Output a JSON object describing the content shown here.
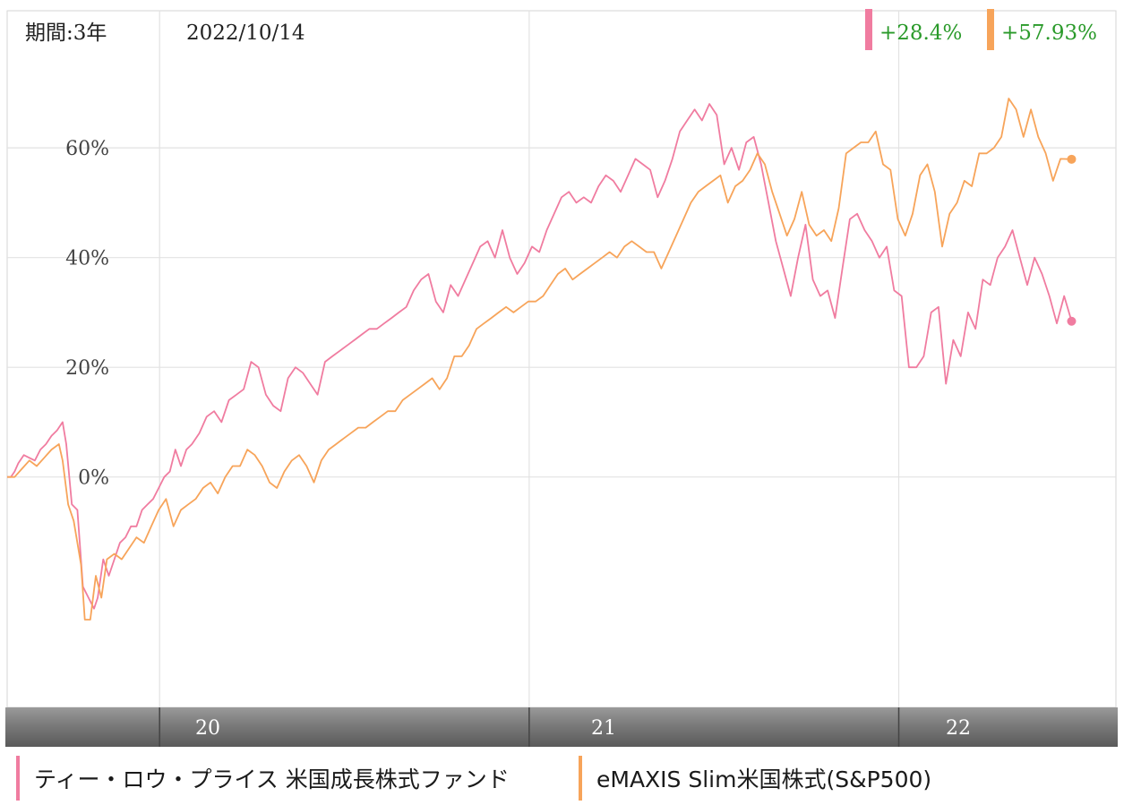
{
  "header": {
    "period_label": "期間:3年",
    "date_label": "2022/10/14"
  },
  "badges": [
    {
      "text": "+28.4%",
      "color": "#f07ca0",
      "text_color": "#2a9a2a"
    },
    {
      "text": "+57.93%",
      "color": "#f7a45a",
      "text_color": "#2a9a2a"
    }
  ],
  "legend": [
    {
      "label": "ティー・ロウ・プライス 米国成長株式ファンド",
      "color": "#f07ca0"
    },
    {
      "label": "eMAXIS Slim米国株式(S&P500)",
      "color": "#f7a45a"
    }
  ],
  "chart_data": {
    "type": "line",
    "x_unit": "years since 2019-10-14",
    "x_range": [
      0,
      3
    ],
    "ylim": [
      -42,
      85
    ],
    "y_ticks": [
      {
        "value": 60,
        "label": "60%"
      },
      {
        "value": 40,
        "label": "40%"
      },
      {
        "value": 20,
        "label": "20%"
      },
      {
        "value": 0,
        "label": "0%"
      }
    ],
    "x_ticks": [
      {
        "value": 0.41,
        "label": "20"
      },
      {
        "value": 1.41,
        "label": "21"
      },
      {
        "value": 2.41,
        "label": "22"
      }
    ],
    "grid": true,
    "series": [
      {
        "name": "ティー・ロウ・プライス 米国成長株式ファンド",
        "color": "#f07ca0",
        "end_value": 28.4,
        "points": [
          [
            0,
            0
          ],
          [
            0.01,
            0
          ],
          [
            0.02,
            1
          ],
          [
            0.03,
            2.5
          ],
          [
            0.045,
            4
          ],
          [
            0.06,
            3.5
          ],
          [
            0.075,
            3
          ],
          [
            0.09,
            5
          ],
          [
            0.105,
            6
          ],
          [
            0.12,
            7.5
          ],
          [
            0.135,
            8.5
          ],
          [
            0.15,
            10
          ],
          [
            0.16,
            6
          ],
          [
            0.175,
            -5
          ],
          [
            0.19,
            -6
          ],
          [
            0.205,
            -20
          ],
          [
            0.22,
            -22
          ],
          [
            0.235,
            -24
          ],
          [
            0.245,
            -22
          ],
          [
            0.26,
            -15
          ],
          [
            0.275,
            -18
          ],
          [
            0.29,
            -15
          ],
          [
            0.305,
            -12
          ],
          [
            0.32,
            -11
          ],
          [
            0.335,
            -9
          ],
          [
            0.35,
            -9
          ],
          [
            0.365,
            -6
          ],
          [
            0.38,
            -5
          ],
          [
            0.395,
            -4
          ],
          [
            0.41,
            -2
          ],
          [
            0.425,
            0
          ],
          [
            0.44,
            1
          ],
          [
            0.455,
            5
          ],
          [
            0.47,
            2
          ],
          [
            0.485,
            5
          ],
          [
            0.5,
            6
          ],
          [
            0.52,
            8
          ],
          [
            0.54,
            11
          ],
          [
            0.56,
            12
          ],
          [
            0.58,
            10
          ],
          [
            0.6,
            14
          ],
          [
            0.62,
            15
          ],
          [
            0.64,
            16
          ],
          [
            0.66,
            21
          ],
          [
            0.68,
            20
          ],
          [
            0.7,
            15
          ],
          [
            0.72,
            13
          ],
          [
            0.74,
            12
          ],
          [
            0.76,
            18
          ],
          [
            0.78,
            20
          ],
          [
            0.8,
            19
          ],
          [
            0.82,
            17
          ],
          [
            0.84,
            15
          ],
          [
            0.86,
            21
          ],
          [
            0.88,
            22
          ],
          [
            0.9,
            23
          ],
          [
            0.92,
            24
          ],
          [
            0.94,
            25
          ],
          [
            0.96,
            26
          ],
          [
            0.98,
            27
          ],
          [
            1.0,
            27
          ],
          [
            1.02,
            28
          ],
          [
            1.04,
            29
          ],
          [
            1.06,
            30
          ],
          [
            1.08,
            31
          ],
          [
            1.1,
            34
          ],
          [
            1.12,
            36
          ],
          [
            1.14,
            37
          ],
          [
            1.16,
            32
          ],
          [
            1.18,
            30
          ],
          [
            1.2,
            35
          ],
          [
            1.22,
            33
          ],
          [
            1.24,
            36
          ],
          [
            1.26,
            39
          ],
          [
            1.28,
            42
          ],
          [
            1.3,
            43
          ],
          [
            1.32,
            40
          ],
          [
            1.34,
            45
          ],
          [
            1.36,
            40
          ],
          [
            1.38,
            37
          ],
          [
            1.4,
            39
          ],
          [
            1.42,
            42
          ],
          [
            1.44,
            41
          ],
          [
            1.46,
            45
          ],
          [
            1.48,
            48
          ],
          [
            1.5,
            51
          ],
          [
            1.52,
            52
          ],
          [
            1.54,
            50
          ],
          [
            1.56,
            51
          ],
          [
            1.58,
            50
          ],
          [
            1.6,
            53
          ],
          [
            1.62,
            55
          ],
          [
            1.64,
            54
          ],
          [
            1.66,
            52
          ],
          [
            1.68,
            55
          ],
          [
            1.7,
            58
          ],
          [
            1.72,
            57
          ],
          [
            1.74,
            56
          ],
          [
            1.76,
            51
          ],
          [
            1.78,
            54
          ],
          [
            1.8,
            58
          ],
          [
            1.82,
            63
          ],
          [
            1.84,
            65
          ],
          [
            1.86,
            67
          ],
          [
            1.88,
            65
          ],
          [
            1.9,
            68
          ],
          [
            1.92,
            66
          ],
          [
            1.94,
            57
          ],
          [
            1.96,
            60
          ],
          [
            1.98,
            56
          ],
          [
            2.0,
            61
          ],
          [
            2.02,
            62
          ],
          [
            2.04,
            57
          ],
          [
            2.06,
            50
          ],
          [
            2.08,
            43
          ],
          [
            2.1,
            38
          ],
          [
            2.12,
            33
          ],
          [
            2.14,
            40
          ],
          [
            2.16,
            46
          ],
          [
            2.18,
            36
          ],
          [
            2.2,
            33
          ],
          [
            2.22,
            34
          ],
          [
            2.24,
            29
          ],
          [
            2.26,
            38
          ],
          [
            2.28,
            47
          ],
          [
            2.3,
            48
          ],
          [
            2.32,
            45
          ],
          [
            2.34,
            43
          ],
          [
            2.36,
            40
          ],
          [
            2.38,
            42
          ],
          [
            2.4,
            34
          ],
          [
            2.42,
            33
          ],
          [
            2.44,
            20
          ],
          [
            2.46,
            20
          ],
          [
            2.48,
            22
          ],
          [
            2.5,
            30
          ],
          [
            2.52,
            31
          ],
          [
            2.54,
            17
          ],
          [
            2.56,
            25
          ],
          [
            2.58,
            22
          ],
          [
            2.6,
            30
          ],
          [
            2.62,
            27
          ],
          [
            2.64,
            36
          ],
          [
            2.66,
            35
          ],
          [
            2.68,
            40
          ],
          [
            2.7,
            42
          ],
          [
            2.72,
            45
          ],
          [
            2.74,
            40
          ],
          [
            2.76,
            35
          ],
          [
            2.78,
            40
          ],
          [
            2.8,
            37
          ],
          [
            2.82,
            33
          ],
          [
            2.84,
            28
          ],
          [
            2.86,
            33
          ],
          [
            2.88,
            28.4
          ]
        ]
      },
      {
        "name": "eMAXIS Slim米国株式(S&P500)",
        "color": "#f7a45a",
        "end_value": 57.93,
        "points": [
          [
            0,
            0
          ],
          [
            0.02,
            0
          ],
          [
            0.04,
            1.5
          ],
          [
            0.06,
            3
          ],
          [
            0.08,
            2
          ],
          [
            0.1,
            3.5
          ],
          [
            0.12,
            5
          ],
          [
            0.14,
            6
          ],
          [
            0.15,
            3
          ],
          [
            0.165,
            -5
          ],
          [
            0.18,
            -8
          ],
          [
            0.2,
            -16
          ],
          [
            0.21,
            -26
          ],
          [
            0.225,
            -26
          ],
          [
            0.24,
            -18
          ],
          [
            0.255,
            -22
          ],
          [
            0.27,
            -15
          ],
          [
            0.29,
            -14
          ],
          [
            0.31,
            -15
          ],
          [
            0.33,
            -13
          ],
          [
            0.35,
            -11
          ],
          [
            0.37,
            -12
          ],
          [
            0.39,
            -9
          ],
          [
            0.41,
            -6
          ],
          [
            0.43,
            -4
          ],
          [
            0.45,
            -9
          ],
          [
            0.47,
            -6
          ],
          [
            0.49,
            -5
          ],
          [
            0.51,
            -4
          ],
          [
            0.53,
            -2
          ],
          [
            0.55,
            -1
          ],
          [
            0.57,
            -3
          ],
          [
            0.59,
            0
          ],
          [
            0.61,
            2
          ],
          [
            0.63,
            2
          ],
          [
            0.65,
            5
          ],
          [
            0.67,
            4
          ],
          [
            0.69,
            2
          ],
          [
            0.71,
            -1
          ],
          [
            0.73,
            -2
          ],
          [
            0.75,
            1
          ],
          [
            0.77,
            3
          ],
          [
            0.79,
            4
          ],
          [
            0.81,
            2
          ],
          [
            0.83,
            -1
          ],
          [
            0.85,
            3
          ],
          [
            0.87,
            5
          ],
          [
            0.89,
            6
          ],
          [
            0.91,
            7
          ],
          [
            0.93,
            8
          ],
          [
            0.95,
            9
          ],
          [
            0.97,
            9
          ],
          [
            0.99,
            10
          ],
          [
            1.01,
            11
          ],
          [
            1.03,
            12
          ],
          [
            1.05,
            12
          ],
          [
            1.07,
            14
          ],
          [
            1.09,
            15
          ],
          [
            1.11,
            16
          ],
          [
            1.13,
            17
          ],
          [
            1.15,
            18
          ],
          [
            1.17,
            16
          ],
          [
            1.19,
            18
          ],
          [
            1.21,
            22
          ],
          [
            1.23,
            22
          ],
          [
            1.25,
            24
          ],
          [
            1.27,
            27
          ],
          [
            1.29,
            28
          ],
          [
            1.31,
            29
          ],
          [
            1.33,
            30
          ],
          [
            1.35,
            31
          ],
          [
            1.37,
            30
          ],
          [
            1.39,
            31
          ],
          [
            1.41,
            32
          ],
          [
            1.43,
            32
          ],
          [
            1.45,
            33
          ],
          [
            1.47,
            35
          ],
          [
            1.49,
            37
          ],
          [
            1.51,
            38
          ],
          [
            1.53,
            36
          ],
          [
            1.55,
            37
          ],
          [
            1.57,
            38
          ],
          [
            1.59,
            39
          ],
          [
            1.61,
            40
          ],
          [
            1.63,
            41
          ],
          [
            1.65,
            40
          ],
          [
            1.67,
            42
          ],
          [
            1.69,
            43
          ],
          [
            1.71,
            42
          ],
          [
            1.73,
            41
          ],
          [
            1.75,
            41
          ],
          [
            1.77,
            38
          ],
          [
            1.79,
            41
          ],
          [
            1.81,
            44
          ],
          [
            1.83,
            47
          ],
          [
            1.85,
            50
          ],
          [
            1.87,
            52
          ],
          [
            1.89,
            53
          ],
          [
            1.91,
            54
          ],
          [
            1.93,
            55
          ],
          [
            1.95,
            50
          ],
          [
            1.97,
            53
          ],
          [
            1.99,
            54
          ],
          [
            2.01,
            56
          ],
          [
            2.03,
            59
          ],
          [
            2.05,
            57
          ],
          [
            2.07,
            52
          ],
          [
            2.09,
            48
          ],
          [
            2.11,
            44
          ],
          [
            2.13,
            47
          ],
          [
            2.15,
            52
          ],
          [
            2.17,
            46
          ],
          [
            2.19,
            44
          ],
          [
            2.21,
            45
          ],
          [
            2.23,
            43
          ],
          [
            2.25,
            49
          ],
          [
            2.27,
            59
          ],
          [
            2.29,
            60
          ],
          [
            2.31,
            61
          ],
          [
            2.33,
            61
          ],
          [
            2.35,
            63
          ],
          [
            2.37,
            57
          ],
          [
            2.39,
            56
          ],
          [
            2.41,
            47
          ],
          [
            2.43,
            44
          ],
          [
            2.45,
            48
          ],
          [
            2.47,
            55
          ],
          [
            2.49,
            57
          ],
          [
            2.51,
            52
          ],
          [
            2.53,
            42
          ],
          [
            2.55,
            48
          ],
          [
            2.57,
            50
          ],
          [
            2.59,
            54
          ],
          [
            2.61,
            53
          ],
          [
            2.63,
            59
          ],
          [
            2.65,
            59
          ],
          [
            2.67,
            60
          ],
          [
            2.69,
            62
          ],
          [
            2.71,
            69
          ],
          [
            2.73,
            67
          ],
          [
            2.75,
            62
          ],
          [
            2.77,
            67
          ],
          [
            2.79,
            62
          ],
          [
            2.81,
            59
          ],
          [
            2.83,
            54
          ],
          [
            2.85,
            58
          ],
          [
            2.88,
            57.93
          ]
        ]
      }
    ]
  }
}
